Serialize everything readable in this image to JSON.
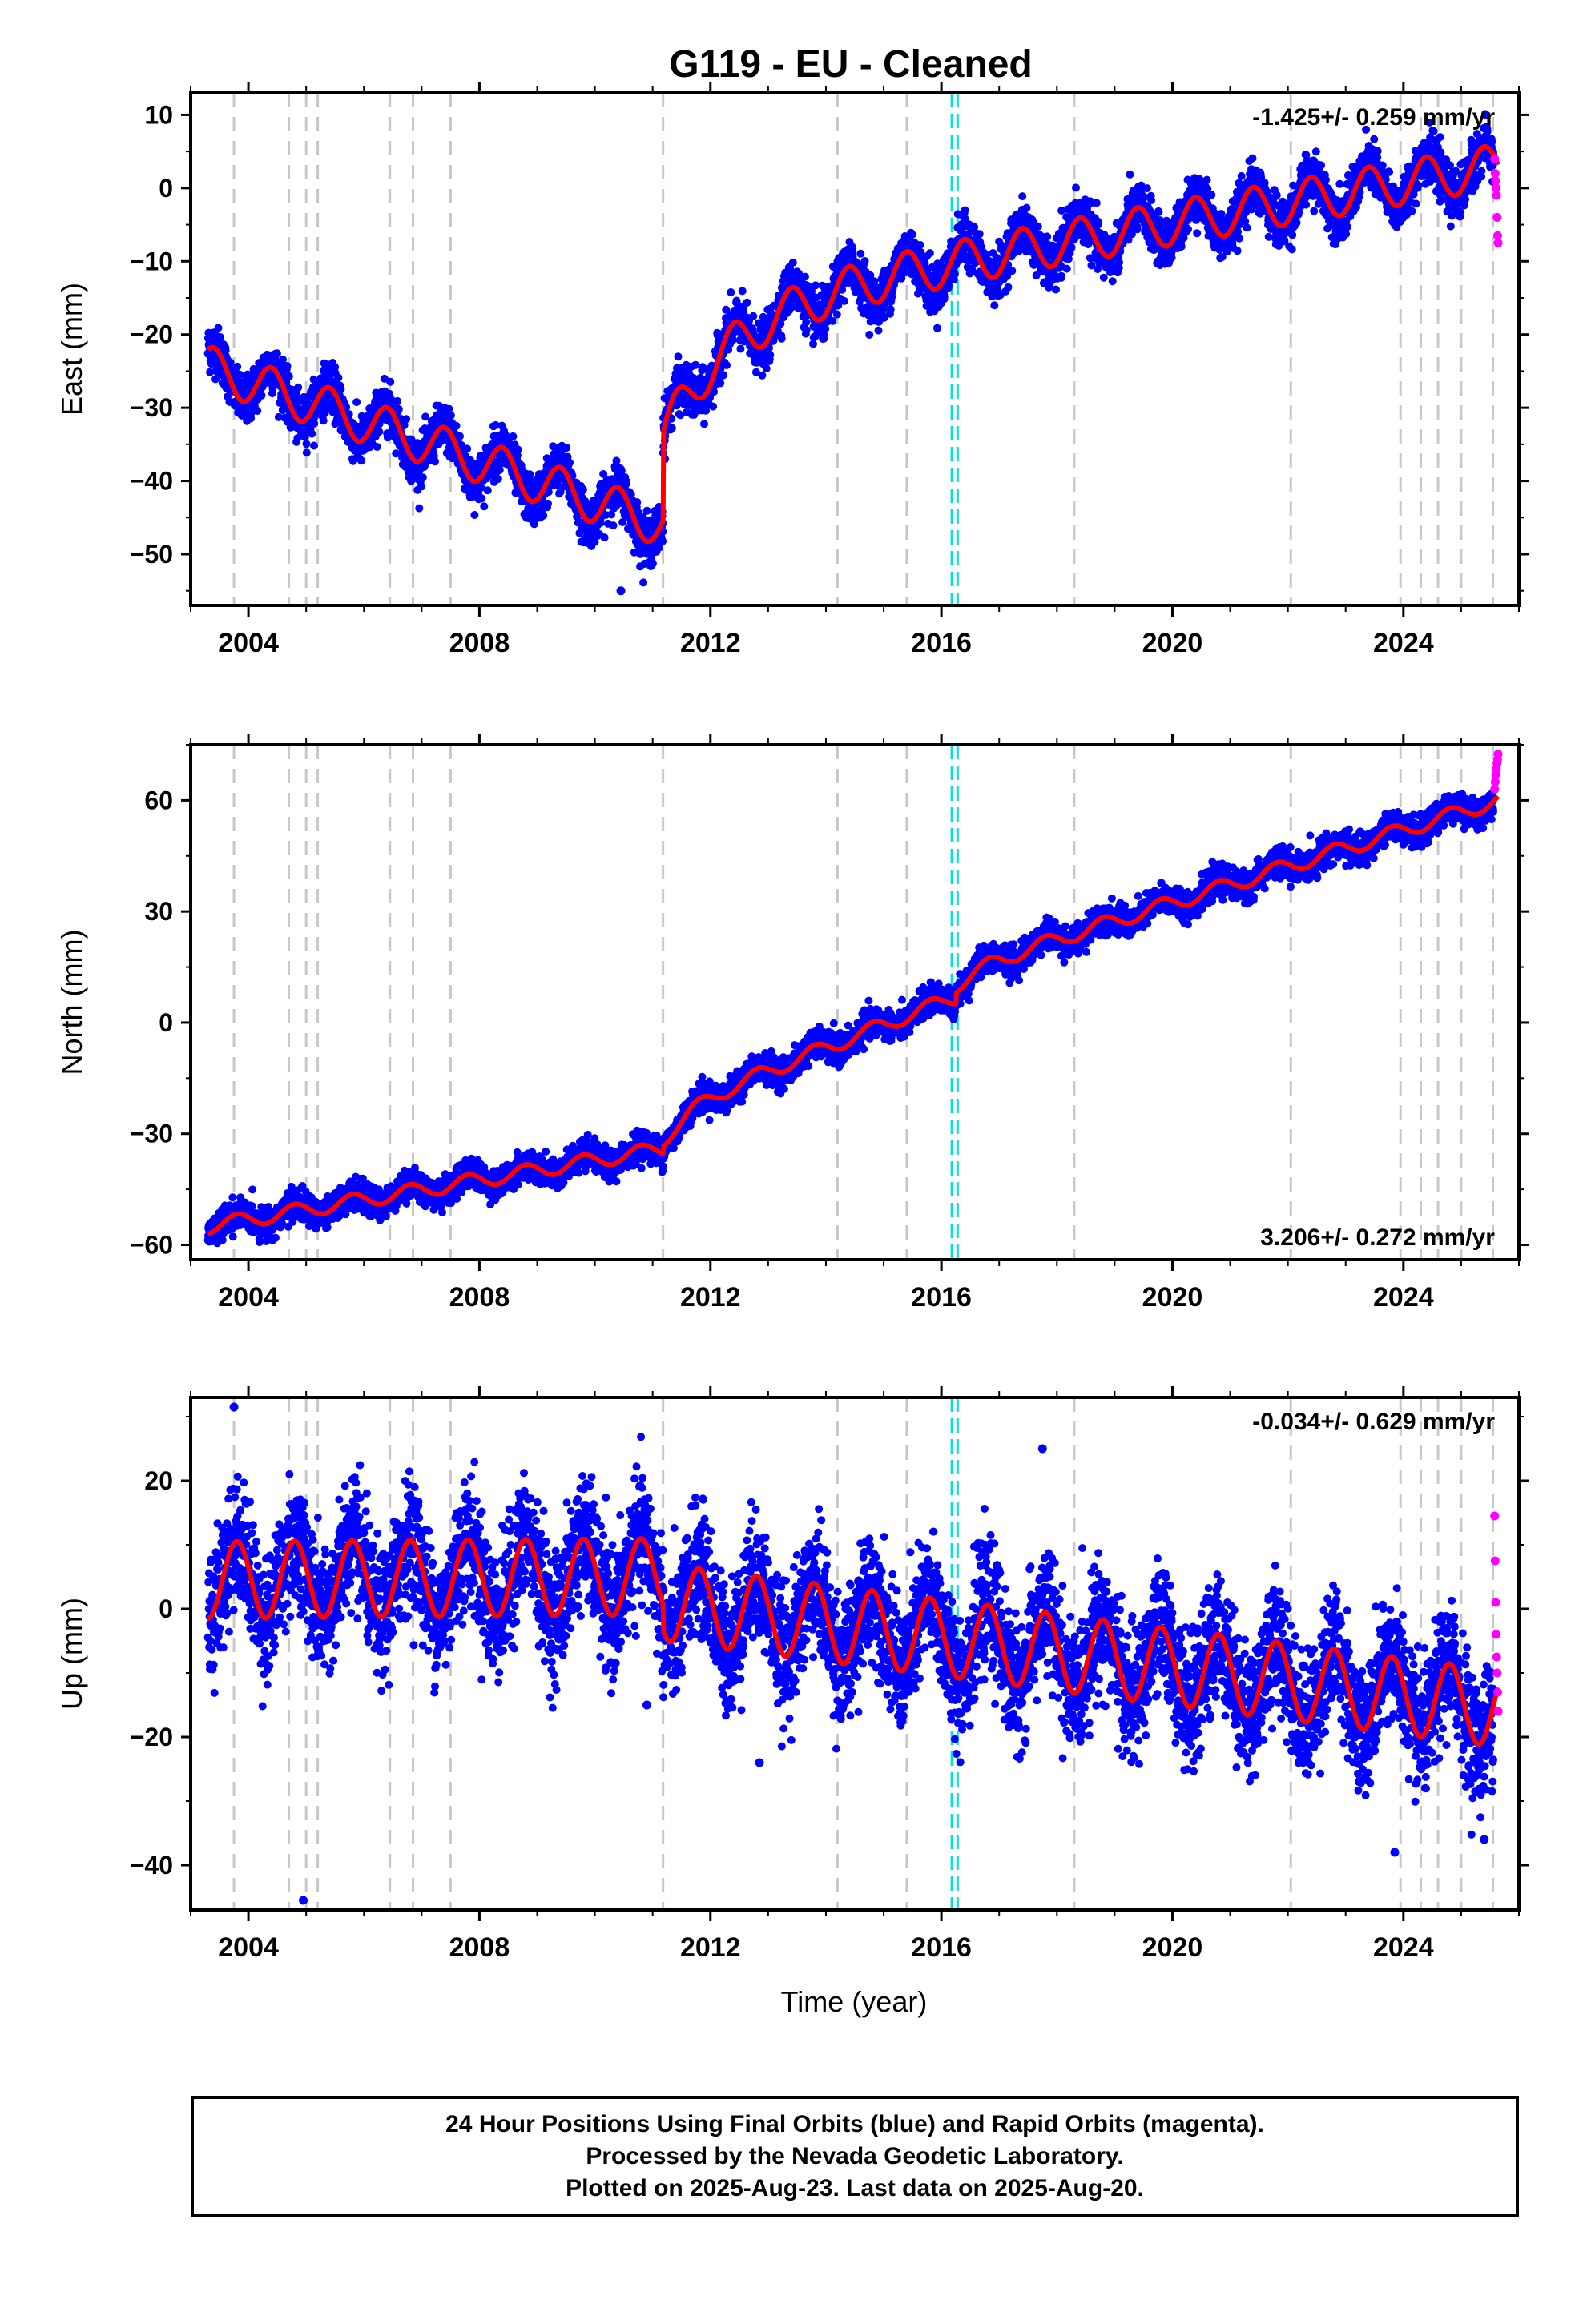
{
  "title": "G119  - EU - Cleaned",
  "colors": {
    "final": "#0000ff",
    "rapid": "#ff00ff",
    "model": "#ff0000",
    "event": "#c8c8c8",
    "antenna": "#00e0e0"
  },
  "xlabel": "Time (year)",
  "footer": {
    "line1": "24 Hour Positions Using Final Orbits (blue) and Rapid Orbits (magenta).",
    "line2": "Processed by the Nevada Geodetic Laboratory.",
    "line3": "Plotted on 2025-Aug-23. Last data on 2025-Aug-20."
  },
  "chart_data": [
    {
      "type": "scatter",
      "component": "East",
      "ylabel": "East (mm)",
      "xlim": [
        2003.0,
        2026.0
      ],
      "ylim": [
        -57,
        13
      ],
      "xticks": [
        2004,
        2008,
        2012,
        2016,
        2020,
        2024
      ],
      "xtick_labels": [
        "2004",
        "2008",
        "2012",
        "2016",
        "2020",
        "2024"
      ],
      "yticks": [
        10,
        0,
        -10,
        -20,
        -30,
        -40,
        -50
      ],
      "ytick_labels": [
        "10",
        "0",
        "−10",
        "−20",
        "−30",
        "−40",
        "−50"
      ],
      "rate_label": "-1.425+/- 0.259 mm/yr",
      "rate_position": "top-right",
      "start": 2003.3,
      "end_final": 2025.56,
      "end": 2025.64,
      "segments": [
        {
          "from": 2003.3,
          "to": 2011.18,
          "y0": -24.5,
          "y1": -46.0
        },
        {
          "from": 2011.18,
          "to": 2025.64,
          "y0": -17.0,
          "y1": 3.0,
          "rise": 17.0,
          "rise_tau": 1.2
        }
      ],
      "seasonal_amplitude": 3.0,
      "seasonal_phase": 0.15,
      "scatter_sigma": 1.6,
      "rapid_values": [
        4.0,
        2.0,
        1.0,
        0.0,
        -1.0,
        -4.0,
        -6.5,
        -7.5
      ],
      "outliers": [
        {
          "x": 2010.45,
          "y": -55.0
        }
      ]
    },
    {
      "type": "scatter",
      "component": "North",
      "ylabel": "North (mm)",
      "xlim": [
        2003.0,
        2026.0
      ],
      "ylim": [
        -64,
        75
      ],
      "xticks": [
        2004,
        2008,
        2012,
        2016,
        2020,
        2024
      ],
      "xtick_labels": [
        "2004",
        "2008",
        "2012",
        "2016",
        "2020",
        "2024"
      ],
      "yticks": [
        60,
        30,
        0,
        -30,
        -60
      ],
      "ytick_labels": [
        "60",
        "30",
        "0",
        "−30",
        "−60"
      ],
      "rate_label": "3.206+/- 0.272 mm/yr",
      "rate_position": "bottom-right",
      "start": 2003.3,
      "end_final": 2025.56,
      "end": 2025.64,
      "segments": [
        {
          "from": 2003.3,
          "to": 2011.18,
          "y0": -55.0,
          "y1": -34.0
        },
        {
          "from": 2011.18,
          "to": 2016.25,
          "y0": -24.0,
          "y1": 7.0,
          "rise": 8.0,
          "rise_tau": 0.5
        },
        {
          "from": 2016.25,
          "to": 2025.64,
          "y0": 14.0,
          "y1": 60.0,
          "rise": 4.0,
          "rise_tau": 0.5
        }
      ],
      "seasonal_amplitude": 2.0,
      "seasonal_phase": 0.55,
      "scatter_sigma": 1.9,
      "rapid_values": [
        63.0,
        65.0,
        67.0,
        68.5,
        70.0,
        71.0,
        72.5
      ],
      "outliers": []
    },
    {
      "type": "scatter",
      "component": "Up",
      "ylabel": "Up (mm)",
      "xlim": [
        2003.0,
        2026.0
      ],
      "ylim": [
        -47,
        33
      ],
      "xticks": [
        2004,
        2008,
        2012,
        2016,
        2020,
        2024
      ],
      "xtick_labels": [
        "2004",
        "2008",
        "2012",
        "2016",
        "2020",
        "2024"
      ],
      "yticks": [
        20,
        0,
        -20,
        -40
      ],
      "ytick_labels": [
        "20",
        "0",
        "−20",
        "−40"
      ],
      "rate_label": "-0.034+/- 0.629 mm/yr",
      "rate_position": "top-right",
      "start": 2003.3,
      "end_final": 2025.56,
      "end": 2025.64,
      "segments": [
        {
          "from": 2003.3,
          "to": 2011.18,
          "y0": 4.5,
          "y1": 5.0
        },
        {
          "from": 2011.18,
          "to": 2025.64,
          "y0": 1.0,
          "y1": -15.5
        }
      ],
      "seasonal_amplitude": 6.0,
      "seasonal_phase": 0.55,
      "scatter_sigma": 4.8,
      "rapid_values": [
        14.5,
        7.5,
        1.0,
        -4.0,
        -7.5,
        -10.0,
        -13.0,
        -16.0
      ],
      "outliers": [
        {
          "x": 2003.75,
          "y": 31.5
        },
        {
          "x": 2004.95,
          "y": -45.5
        },
        {
          "x": 2012.85,
          "y": -24.0
        },
        {
          "x": 2023.85,
          "y": -38.0
        },
        {
          "x": 2025.4,
          "y": -36.0
        },
        {
          "x": 2010.9,
          "y": -15.0
        },
        {
          "x": 2017.75,
          "y": 25.0
        }
      ]
    }
  ],
  "event_lines": [
    2003.75,
    2004.7,
    2005.0,
    2005.2,
    2006.45,
    2006.85,
    2007.5,
    2011.18,
    2014.2,
    2015.4,
    2018.3,
    2022.05,
    2023.95,
    2024.3,
    2024.6,
    2025.0,
    2025.55
  ],
  "antenna_lines": [
    2016.18,
    2016.28
  ]
}
